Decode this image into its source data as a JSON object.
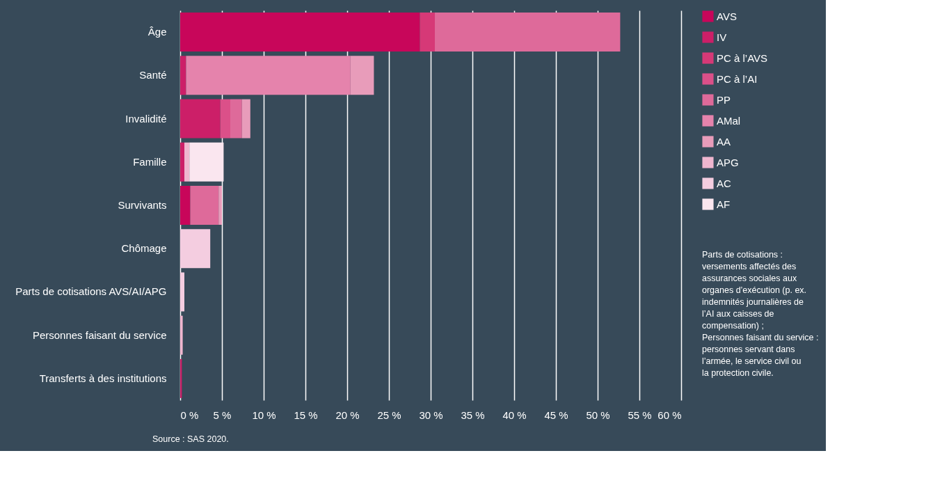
{
  "chart_data": {
    "type": "bar",
    "orientation": "horizontal",
    "stacked": true,
    "categories": [
      "Âge",
      "Santé",
      "Invalidité",
      "Famille",
      "Survivants",
      "Chômage",
      "Parts de cotisations AVS/AI/APG",
      "Personnes faisant du service",
      "Transferts à des institutions"
    ],
    "series": [
      {
        "name": "AVS",
        "color": "#c8065a",
        "values": [
          28.7,
          0,
          0,
          0,
          1.2,
          0,
          0,
          0,
          0
        ]
      },
      {
        "name": "IV",
        "color": "#cc1f68",
        "values": [
          0,
          0.7,
          4.8,
          0.5,
          0,
          0,
          0,
          0,
          0.2
        ]
      },
      {
        "name": "PC à l’AVS",
        "color": "#d63977",
        "values": [
          1.8,
          0,
          0,
          0,
          0,
          0,
          0,
          0,
          0
        ]
      },
      {
        "name": "PC à l’AI",
        "color": "#db5089",
        "values": [
          0,
          0,
          1.2,
          0,
          0,
          0,
          0,
          0,
          0
        ]
      },
      {
        "name": "PP",
        "color": "#de6a9a",
        "values": [
          22.2,
          0,
          1.4,
          0,
          3.4,
          0,
          0,
          0,
          0
        ]
      },
      {
        "name": "AMal",
        "color": "#e583ac",
        "values": [
          0,
          19.7,
          0,
          0,
          0,
          0,
          0,
          0,
          0
        ]
      },
      {
        "name": "AA",
        "color": "#e89cba",
        "values": [
          0,
          2.8,
          1.0,
          0,
          0.4,
          0,
          0,
          0,
          0
        ]
      },
      {
        "name": "APG",
        "color": "#efb6cf",
        "values": [
          0,
          0,
          0,
          0.6,
          0,
          0,
          0,
          0.3,
          0
        ]
      },
      {
        "name": "AC",
        "color": "#f4cde0",
        "values": [
          0,
          0,
          0,
          0,
          0,
          3.6,
          0.5,
          0,
          0
        ]
      },
      {
        "name": "AF",
        "color": "#fae6ef",
        "values": [
          0,
          0,
          0,
          4.1,
          0,
          0,
          0,
          0,
          0
        ]
      }
    ],
    "xlim": [
      0,
      60
    ],
    "xticks": [
      {
        "value": 0,
        "label": "0 %"
      },
      {
        "value": 5,
        "label": "5 %"
      },
      {
        "value": 10,
        "label": "10 %"
      },
      {
        "value": 15,
        "label": "15 %"
      },
      {
        "value": 20,
        "label": "20 %"
      },
      {
        "value": 25,
        "label": "25 %"
      },
      {
        "value": 30,
        "label": "30 %"
      },
      {
        "value": 35,
        "label": "35 %"
      },
      {
        "value": 40,
        "label": "40 %"
      },
      {
        "value": 45,
        "label": "45 %"
      },
      {
        "value": 50,
        "label": "50 %"
      },
      {
        "value": 55,
        "label": "55 %"
      },
      {
        "value": 60,
        "label": "60 %"
      }
    ],
    "grid": "x",
    "legend": "right",
    "annotations": [
      "Parts de cotisations : versements affectés des assurances sociales aux organes d’exécution (p. ex. indemnités journalières de l’AI aux caisses de compensation) ;",
      "Personnes faisant du service : personnes servant dans l’armée, le service civil ou la protection civile.",
      "Source : SAS 2020."
    ]
  }
}
